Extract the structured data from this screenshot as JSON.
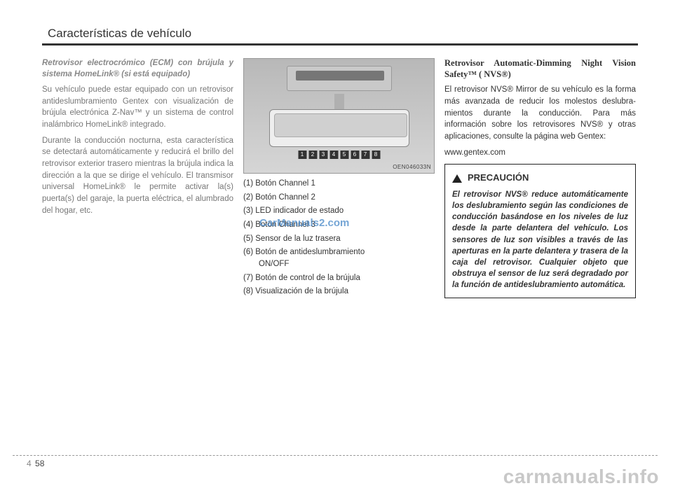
{
  "header": {
    "title": "Características de vehículo"
  },
  "col1": {
    "subhead": "Retrovisor electrocrómico (ECM) con brújula y sistema HomeLink® (si está equipado)",
    "p1": "Su vehículo puede estar equipado con un retrovisor antideslumbra­miento Gentex con visualización de brújula electrónica Z-Nav™ y un sistema de control inalámbrico HomeLink® integrado.",
    "p2": "Durante la conducción nocturna, esta característica se detectará automáticamente y reducirá el brillo del retrovisor exterior trasero mientras la brújula indica la dirección a la que se dirige el vehículo. El transmisor universal HomeLink® le permite activar la(s) puerta(s) del garaje, la puerta eléctrica, el alumbrado del hogar, etc."
  },
  "col2": {
    "fig_code": "OEN046033N",
    "items": [
      "(1) Botón Channel 1",
      "(2) Botón Channel 2",
      "(3) LED indicador de estado",
      "(4) Botón Channel 3",
      "(5) Sensor de la luz trasera",
      "(6) Botón de antideslumbramiento ON/OFF",
      "(7) Botón de control de la brújula",
      "(8) Visualización de la brújula"
    ],
    "item6_sub": "ON/OFF"
  },
  "col3": {
    "head": "Retrovisor Automatic-Dimming Night Vision Safety™ ( NVS®)",
    "p1": "El retrovisor NVS® Mirror de su vehículo es la forma más avanzada de reducir los molestos deslubra­mientos durante la conducción. Para más información sobre los retrovisores NVS® y otras aplicaciones, consulte la página web Gentex:",
    "p2": "www.gentex.com",
    "caution_title": "PRECAUCIÓN",
    "caution_body": "El retrovisor NVS® reduce automáticamente los deslubra­miento según las condiciones de conducción basándose en los niveles de luz desde la parte delantera del vehículo. Los sensores de luz son visibles a través de las aperturas en la parte delantera y trasera de la caja del retrovisor. Cualquier objeto que obstruya el sensor de luz será degradado por la función de antideslubramiento automática."
  },
  "pagenum": {
    "section": "4",
    "page": "58"
  },
  "watermarks": {
    "center": "CarManuals2.com",
    "bottom": "carmanuals.info"
  },
  "callouts": [
    "1",
    "2",
    "3",
    "4",
    "5",
    "6",
    "7",
    "8"
  ]
}
